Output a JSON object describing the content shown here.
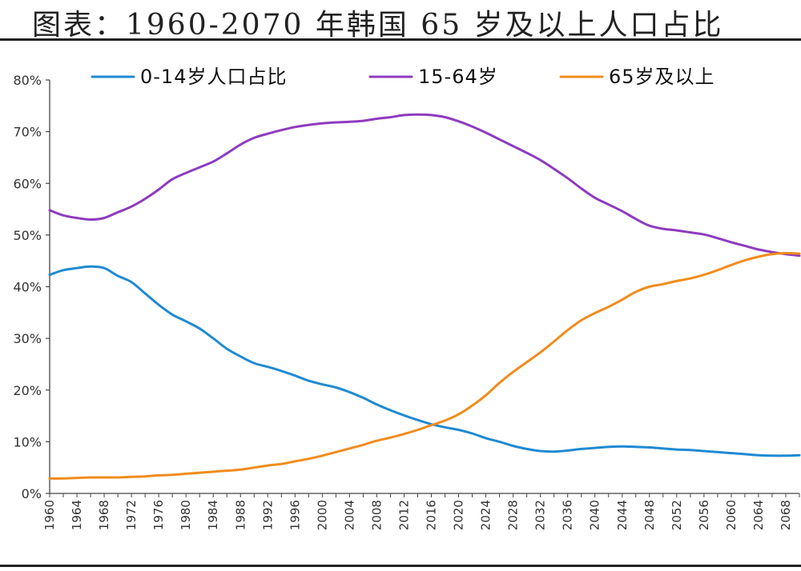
{
  "title": "图表：1960-2070 年韩国 65 岁及以上人口占比",
  "chart_data": {
    "type": "line",
    "title": "图表：1960-2070 年韩国 65 岁及以上人口占比",
    "xlabel": "",
    "ylabel": "",
    "ylim": [
      0,
      80
    ],
    "yticks": [
      "0%",
      "10%",
      "20%",
      "30%",
      "40%",
      "50%",
      "60%",
      "70%",
      "80%"
    ],
    "xlim": [
      1960,
      2070
    ],
    "xticks": [
      1960,
      1964,
      1968,
      1972,
      1976,
      1980,
      1984,
      1988,
      1992,
      1996,
      2000,
      2004,
      2008,
      2012,
      2016,
      2020,
      2024,
      2028,
      2032,
      2036,
      2040,
      2044,
      2048,
      2052,
      2056,
      2060,
      2064,
      2068
    ],
    "grid": false,
    "legend_position": "top",
    "x": [
      1960,
      1962,
      1964,
      1966,
      1968,
      1970,
      1972,
      1974,
      1976,
      1978,
      1980,
      1982,
      1984,
      1986,
      1988,
      1990,
      1992,
      1994,
      1996,
      1998,
      2000,
      2002,
      2004,
      2006,
      2008,
      2010,
      2012,
      2014,
      2016,
      2018,
      2020,
      2022,
      2024,
      2026,
      2028,
      2030,
      2032,
      2034,
      2036,
      2038,
      2040,
      2042,
      2044,
      2046,
      2048,
      2050,
      2052,
      2054,
      2056,
      2058,
      2060,
      2062,
      2064,
      2066,
      2068,
      2070
    ],
    "series": [
      {
        "name": "0-14岁人口占比",
        "color": "#1f8ad2",
        "values": [
          42.3,
          43.2,
          43.6,
          43.9,
          43.6,
          42.1,
          40.9,
          38.7,
          36.5,
          34.6,
          33.3,
          31.9,
          30.0,
          28.0,
          26.5,
          25.2,
          24.5,
          23.7,
          22.8,
          21.8,
          21.1,
          20.5,
          19.6,
          18.5,
          17.2,
          16.1,
          15.1,
          14.2,
          13.4,
          12.8,
          12.3,
          11.6,
          10.7,
          10.0,
          9.2,
          8.6,
          8.2,
          8.1,
          8.3,
          8.6,
          8.8,
          9.0,
          9.1,
          9.0,
          8.9,
          8.7,
          8.5,
          8.4,
          8.2,
          8.0,
          7.8,
          7.6,
          7.4,
          7.3,
          7.3,
          7.4
        ]
      },
      {
        "name": "15-64岁",
        "color": "#8e3bbf",
        "values": [
          54.8,
          53.8,
          53.3,
          53.0,
          53.3,
          54.4,
          55.5,
          57.0,
          58.8,
          60.8,
          62.0,
          63.1,
          64.2,
          65.8,
          67.5,
          68.8,
          69.6,
          70.3,
          70.9,
          71.3,
          71.6,
          71.8,
          71.9,
          72.1,
          72.5,
          72.8,
          73.2,
          73.3,
          73.2,
          72.8,
          72.0,
          71.0,
          69.8,
          68.5,
          67.2,
          65.9,
          64.5,
          62.8,
          61.0,
          59.0,
          57.2,
          55.9,
          54.6,
          53.1,
          51.8,
          51.2,
          50.9,
          50.5,
          50.1,
          49.4,
          48.6,
          47.9,
          47.2,
          46.7,
          46.3,
          46.0
        ]
      },
      {
        "name": "65岁及以上",
        "color": "#f08c1c",
        "values": [
          2.9,
          2.9,
          3.0,
          3.1,
          3.1,
          3.1,
          3.2,
          3.3,
          3.5,
          3.6,
          3.8,
          4.0,
          4.2,
          4.4,
          4.6,
          5.0,
          5.4,
          5.7,
          6.2,
          6.7,
          7.3,
          8.0,
          8.7,
          9.4,
          10.2,
          10.8,
          11.5,
          12.3,
          13.2,
          14.1,
          15.3,
          17.0,
          19.0,
          21.4,
          23.5,
          25.4,
          27.3,
          29.4,
          31.6,
          33.5,
          34.9,
          36.1,
          37.5,
          39.0,
          40.0,
          40.5,
          41.1,
          41.6,
          42.3,
          43.2,
          44.2,
          45.1,
          45.8,
          46.3,
          46.5,
          46.4
        ]
      }
    ]
  }
}
